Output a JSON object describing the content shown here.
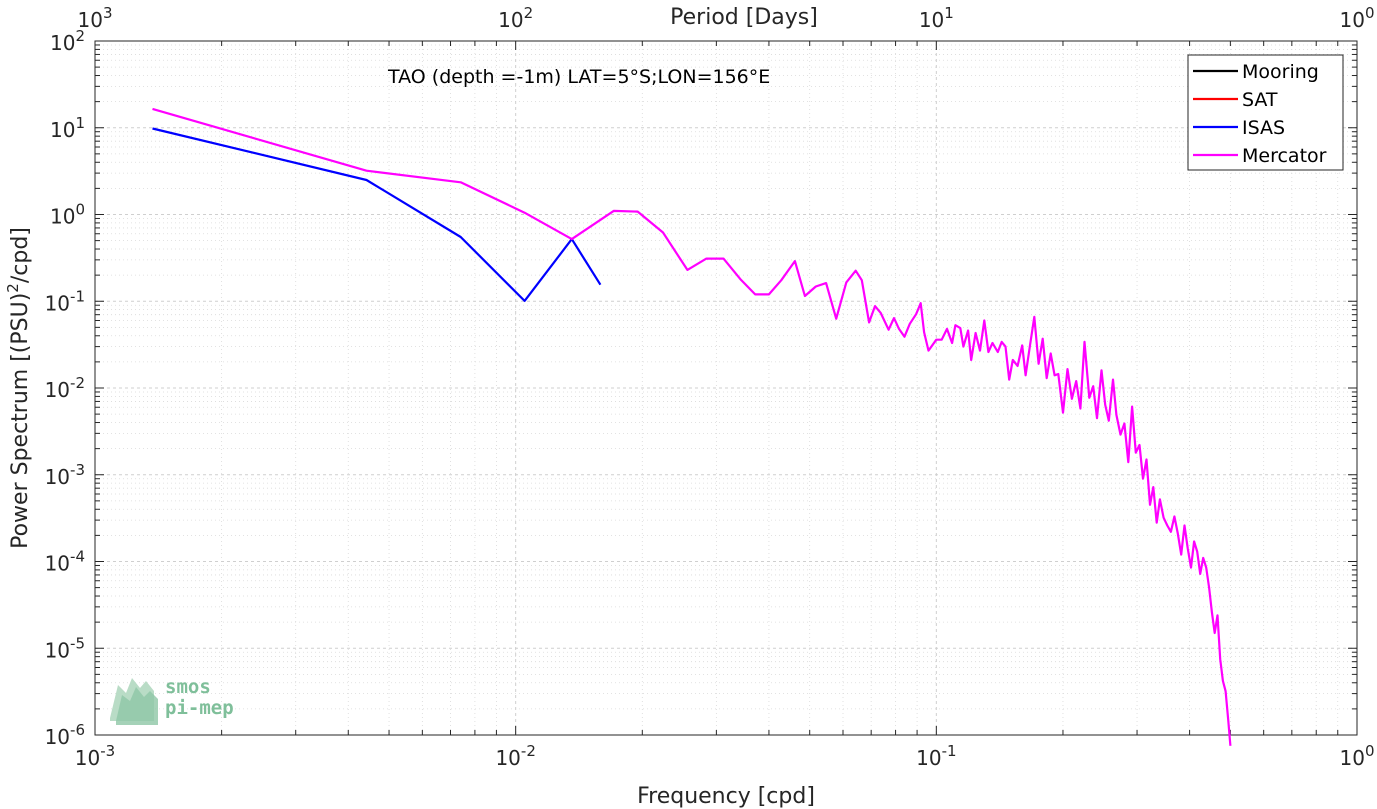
{
  "chart_data": {
    "type": "line",
    "annotation": "TAO (depth =-1m) LAT=5°S;LON=156°E",
    "xlabel": "Frequency [cpd]",
    "ylabel": "Power Spectrum [(PSU)^2/cpd]",
    "top_xlabel": "Period [Days]",
    "xscale": "log",
    "yscale": "log",
    "xlim": [
      0.001,
      1
    ],
    "ylim": [
      1e-06,
      100
    ],
    "grid": true,
    "legend_position": "top-right",
    "x_ticks": [
      {
        "base": "10",
        "exp": "-3",
        "value": 0.001
      },
      {
        "base": "10",
        "exp": "-2",
        "value": 0.01
      },
      {
        "base": "10",
        "exp": "-1",
        "value": 0.1
      },
      {
        "base": "10",
        "exp": "0",
        "value": 1
      }
    ],
    "top_ticks": [
      {
        "base": "10",
        "exp": "3",
        "value": 0.001
      },
      {
        "base": "10",
        "exp": "2",
        "value": 0.01
      },
      {
        "base": "10",
        "exp": "1",
        "value": 0.1
      },
      {
        "base": "10",
        "exp": "0",
        "value": 1
      }
    ],
    "y_ticks": [
      {
        "base": "10",
        "exp": "2",
        "value": 100
      },
      {
        "base": "10",
        "exp": "1",
        "value": 10
      },
      {
        "base": "10",
        "exp": "0",
        "value": 1
      },
      {
        "base": "10",
        "exp": "-1",
        "value": 0.1
      },
      {
        "base": "10",
        "exp": "-2",
        "value": 0.01
      },
      {
        "base": "10",
        "exp": "-3",
        "value": 0.001
      },
      {
        "base": "10",
        "exp": "-4",
        "value": 0.0001
      },
      {
        "base": "10",
        "exp": "-5",
        "value": 1e-05
      },
      {
        "base": "10",
        "exp": "-6",
        "value": 1e-06
      }
    ],
    "series": [
      {
        "name": "Mooring",
        "color": "#000000",
        "x": [],
        "y": []
      },
      {
        "name": "SAT",
        "color": "#ff0000",
        "x": [],
        "y": []
      },
      {
        "name": "ISAS",
        "color": "#0000ff",
        "x": [
          0.00137,
          0.00442,
          0.0074,
          0.0105,
          0.0136,
          0.0159
        ],
        "y": [
          9.8,
          2.5,
          0.55,
          0.101,
          0.52,
          0.155
        ]
      },
      {
        "name": "Mercator",
        "color": "#ff00ff",
        "x": [
          0.00137,
          0.00442,
          0.0074,
          0.0105,
          0.0136,
          0.0171,
          0.0195,
          0.0224,
          0.0256,
          0.0284,
          0.0312,
          0.0342,
          0.0371,
          0.04,
          0.0428,
          0.0461,
          0.0487,
          0.0517,
          0.0547,
          0.0578,
          0.0611,
          0.0643,
          0.0665,
          0.0692,
          0.0715,
          0.0738,
          0.077,
          0.0793,
          0.0815,
          0.084,
          0.0865,
          0.0895,
          0.0918,
          0.0935,
          0.0958,
          0.1,
          0.103,
          0.106,
          0.109,
          0.111,
          0.114,
          0.116,
          0.119,
          0.121,
          0.124,
          0.127,
          0.13,
          0.133,
          0.136,
          0.14,
          0.143,
          0.146,
          0.149,
          0.152,
          0.156,
          0.16,
          0.163,
          0.167,
          0.171,
          0.175,
          0.179,
          0.183,
          0.187,
          0.191,
          0.195,
          0.2,
          0.205,
          0.21,
          0.215,
          0.22,
          0.225,
          0.231,
          0.236,
          0.241,
          0.247,
          0.252,
          0.257,
          0.263,
          0.268,
          0.274,
          0.28,
          0.286,
          0.292,
          0.298,
          0.304,
          0.31,
          0.316,
          0.322,
          0.328,
          0.334,
          0.34,
          0.347,
          0.354,
          0.361,
          0.368,
          0.375,
          0.382,
          0.389,
          0.396,
          0.403,
          0.41,
          0.417,
          0.424,
          0.431,
          0.438,
          0.445,
          0.452,
          0.459,
          0.466,
          0.473,
          0.48,
          0.487,
          0.494,
          0.5
        ],
        "y": [
          16.5,
          3.2,
          2.35,
          1.05,
          0.52,
          1.1,
          1.08,
          0.62,
          0.23,
          0.31,
          0.31,
          0.18,
          0.12,
          0.12,
          0.175,
          0.29,
          0.115,
          0.148,
          0.162,
          0.063,
          0.165,
          0.225,
          0.175,
          0.057,
          0.088,
          0.073,
          0.047,
          0.064,
          0.048,
          0.039,
          0.055,
          0.071,
          0.095,
          0.044,
          0.027,
          0.036,
          0.036,
          0.048,
          0.033,
          0.053,
          0.049,
          0.03,
          0.046,
          0.021,
          0.043,
          0.027,
          0.06,
          0.026,
          0.033,
          0.026,
          0.034,
          0.03,
          0.0125,
          0.021,
          0.018,
          0.031,
          0.014,
          0.031,
          0.066,
          0.019,
          0.037,
          0.013,
          0.025,
          0.014,
          0.0145,
          0.0052,
          0.0165,
          0.0075,
          0.012,
          0.0058,
          0.034,
          0.0077,
          0.0105,
          0.0045,
          0.016,
          0.0064,
          0.0042,
          0.0125,
          0.0049,
          0.0029,
          0.0039,
          0.0014,
          0.0061,
          0.0018,
          0.0022,
          0.0009,
          0.0015,
          0.00045,
          0.00072,
          0.00028,
          0.00052,
          0.00032,
          0.00026,
          0.00022,
          0.00033,
          0.00021,
          0.00012,
          0.00026,
          0.00014,
          8.5e-05,
          0.00017,
          0.00013,
          7.2e-05,
          0.00011,
          8.5e-05,
          5e-05,
          2.6e-05,
          1.5e-05,
          2.4e-05,
          7.5e-06,
          4.2e-06,
          3.2e-06,
          1.5e-06,
          7.5e-07
        ]
      }
    ]
  },
  "logo": {
    "line1": "smos",
    "line2": "pi-mep"
  }
}
